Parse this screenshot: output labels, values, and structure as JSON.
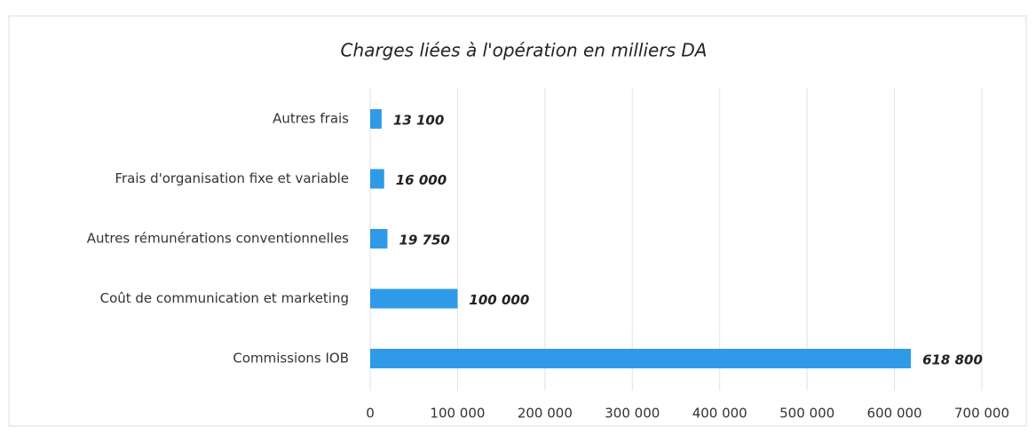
{
  "chart_data": {
    "type": "barh",
    "title": "Charges liées à l'opération en milliers DA",
    "categories": [
      "Autres frais",
      "Frais d'organisation fixe et variable",
      "Autres rémunérations conventionnelles",
      "Coût de communication et marketing",
      "Commissions IOB"
    ],
    "values": [
      13100,
      16000,
      19750,
      100000,
      618800
    ],
    "value_labels": [
      "13 100",
      "16 000",
      "19 750",
      "100 000",
      "618 800"
    ],
    "color": "#2f9be8",
    "xlim": [
      0,
      700000
    ],
    "xticks": [
      0,
      {
        "value": 100000,
        "label": "100 000"
      },
      {
        "value": 200000,
        "label": "200 000"
      },
      {
        "value": 300000,
        "label": "300 000"
      },
      {
        "value": 400000,
        "label": "400 000"
      },
      {
        "value": 500000,
        "label": "500 000"
      },
      {
        "value": 600000,
        "label": "600 000"
      },
      {
        "value": 700000,
        "label": "700 000"
      }
    ],
    "grid": true
  }
}
